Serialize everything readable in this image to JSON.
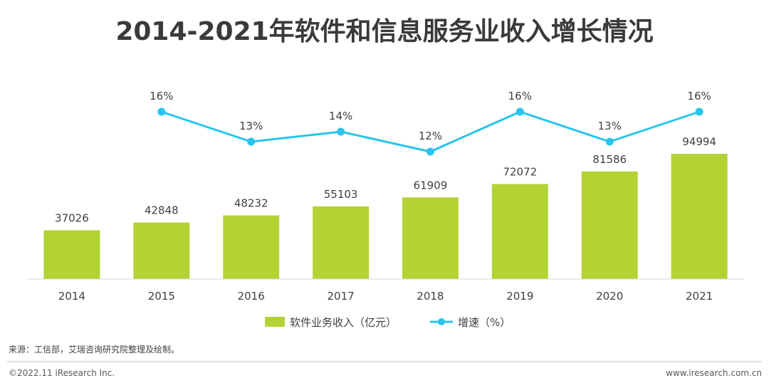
{
  "chart_data": {
    "type": "bar",
    "title": "2014-2021年软件和信息服务业收入增长情况",
    "categories": [
      "2014",
      "2015",
      "2016",
      "2017",
      "2018",
      "2019",
      "2020",
      "2021"
    ],
    "series": [
      {
        "name": "软件业务收入（亿元）",
        "type": "bar",
        "values": [
          37026,
          42848,
          48232,
          55103,
          61909,
          72072,
          81586,
          94994
        ],
        "labels": [
          "37026",
          "42848",
          "48232",
          "55103",
          "61909",
          "72072",
          "81586",
          "94994"
        ],
        "color": "#b3d335"
      },
      {
        "name": "增速（%）",
        "type": "line",
        "x": [
          "2015",
          "2016",
          "2017",
          "2018",
          "2019",
          "2020",
          "2021"
        ],
        "values": [
          16,
          13,
          14,
          12,
          16,
          13,
          16
        ],
        "labels": [
          "16%",
          "13%",
          "14%",
          "12%",
          "16%",
          "13%",
          "16%"
        ],
        "color": "#28c4ec"
      }
    ],
    "legend_position": "bottom",
    "grid": false
  },
  "footer": {
    "source": "来源：工信部，艾瑞咨询研究院整理及绘制。",
    "copyright": "©2022.11 iResearch Inc.",
    "website": "www.iresearch.com.cn"
  }
}
